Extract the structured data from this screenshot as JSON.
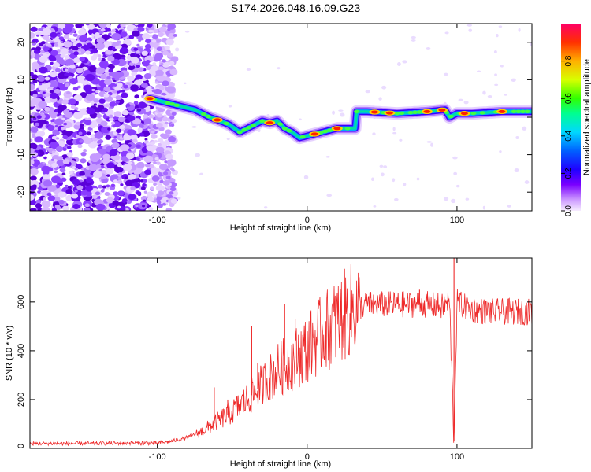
{
  "title": "S174.2026.048.16.09.G23",
  "chart_data": [
    {
      "type": "heatmap",
      "title": "S174.2026.048.16.09.G23",
      "xlabel": "Height of straight line (km)",
      "ylabel": "Frequency (Hz)",
      "xlim": [
        -185,
        150
      ],
      "ylim": [
        -25,
        25
      ],
      "xticks": [
        -100,
        0,
        100
      ],
      "yticks": [
        -20,
        -10,
        0,
        10,
        20
      ],
      "colorbar": {
        "label": "Normalized spectral amplitude",
        "range": [
          0,
          1
        ],
        "ticks": [
          "0.0",
          "0.2",
          "0.4",
          "0.6",
          "0.8"
        ]
      },
      "ridge": {
        "x": [
          -105,
          -95,
          -85,
          -75,
          -65,
          -58,
          -52,
          -45,
          -40,
          -35,
          -30,
          -25,
          -20,
          -15,
          -10,
          -5,
          0,
          5,
          10,
          20,
          32,
          33,
          40,
          60,
          80,
          92,
          95,
          100,
          110,
          130,
          150
        ],
        "y": [
          5,
          4,
          3,
          2,
          0,
          -1,
          -2,
          -4,
          -3,
          -2,
          -1,
          -1.5,
          -1,
          -3,
          -4,
          -5.5,
          -5,
          -4.5,
          -4,
          -3,
          -3,
          1.5,
          1.5,
          1,
          1.5,
          2,
          0,
          1,
          1,
          1.5,
          1.5
        ]
      },
      "peaks_x": [
        -105,
        -60,
        -25,
        5,
        20,
        45,
        55,
        80,
        90,
        105,
        130
      ]
    },
    {
      "type": "line",
      "xlabel": "Height of straight line (km)",
      "ylabel": "SNR (10 * v/v)",
      "xlim": [
        -185,
        150
      ],
      "ylim": [
        0,
        780
      ],
      "xticks": [
        -100,
        0,
        100
      ],
      "yticks": [
        0,
        200,
        400,
        600
      ],
      "series": [
        {
          "name": "SNR",
          "color": "#ee2a2a",
          "x": [
            -185,
            -160,
            -140,
            -120,
            -100,
            -90,
            -80,
            -70,
            -60,
            -50,
            -40,
            -30,
            -20,
            -10,
            0,
            10,
            20,
            30,
            40,
            50,
            60,
            70,
            80,
            90,
            95,
            98,
            100,
            105,
            110,
            120,
            130,
            140,
            150
          ],
          "y": [
            20,
            20,
            20,
            22,
            22,
            30,
            45,
            70,
            110,
            150,
            200,
            260,
            320,
            360,
            410,
            470,
            520,
            570,
            590,
            590,
            590,
            590,
            590,
            580,
            600,
            30,
            600,
            580,
            570,
            560,
            560,
            560,
            560
          ],
          "spikes": [
            {
              "x": -62,
              "y": 250
            },
            {
              "x": -53,
              "y": 200
            },
            {
              "x": -37,
              "y": 500
            },
            {
              "x": -33,
              "y": 350
            },
            {
              "x": -15,
              "y": 590
            },
            {
              "x": -8,
              "y": 530
            },
            {
              "x": 98,
              "y": 780
            },
            {
              "x": 98,
              "y": 30
            },
            {
              "x": 75,
              "y": 650
            }
          ]
        }
      ]
    }
  ]
}
